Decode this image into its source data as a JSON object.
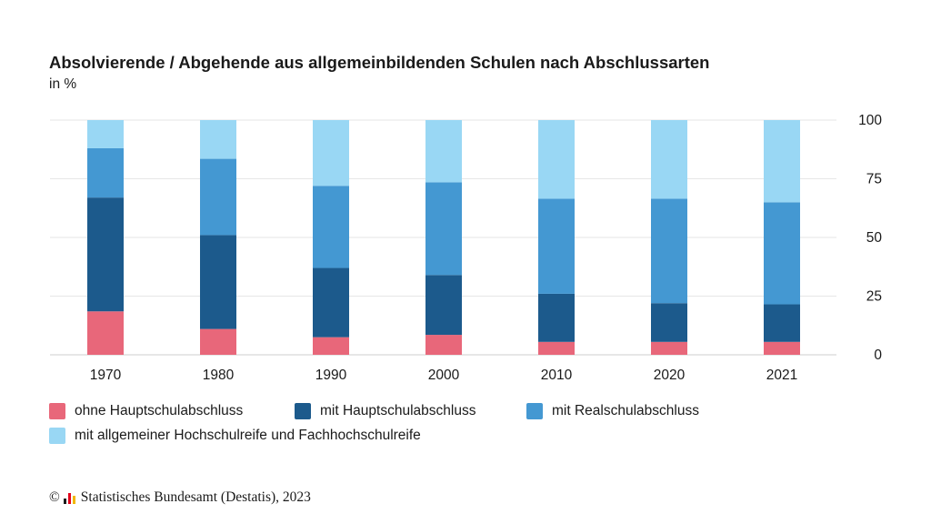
{
  "header": {
    "title": "Absolvierende / Abgehende aus allgemeinbildenden Schulen nach Abschlussarten",
    "subtitle": "in %"
  },
  "footer": {
    "copyright_symbol": "©",
    "text": "Statistisches Bundesamt (Destatis), 2023"
  },
  "chart_data": {
    "type": "bar",
    "stacked": true,
    "categories": [
      "1970",
      "1980",
      "1990",
      "2000",
      "2010",
      "2020",
      "2021"
    ],
    "series": [
      {
        "name": "ohne Hauptschulabschluss",
        "color": "#e8677a",
        "values": [
          18.5,
          11,
          7.5,
          8.5,
          5.5,
          5.5,
          5.5
        ]
      },
      {
        "name": "mit Hauptschulabschluss",
        "color": "#1c5a8c",
        "values": [
          48.5,
          40,
          29.5,
          25.5,
          20.5,
          16.5,
          16
        ]
      },
      {
        "name": "mit Realschulabschluss",
        "color": "#4498d2",
        "values": [
          21,
          32.5,
          35,
          39.5,
          40.5,
          44.5,
          43.5
        ]
      },
      {
        "name": "mit allgemeiner Hochschulreife und Fachhochschulreife",
        "color": "#99d7f4",
        "values": [
          12,
          16.5,
          28,
          26.5,
          33.5,
          33.5,
          35
        ]
      }
    ],
    "y_ticks": [
      "0",
      "25",
      "50",
      "75",
      "100"
    ],
    "ylim": [
      0,
      100
    ],
    "y_axis_side": "right",
    "grid": true,
    "legend_position": "bottom"
  }
}
